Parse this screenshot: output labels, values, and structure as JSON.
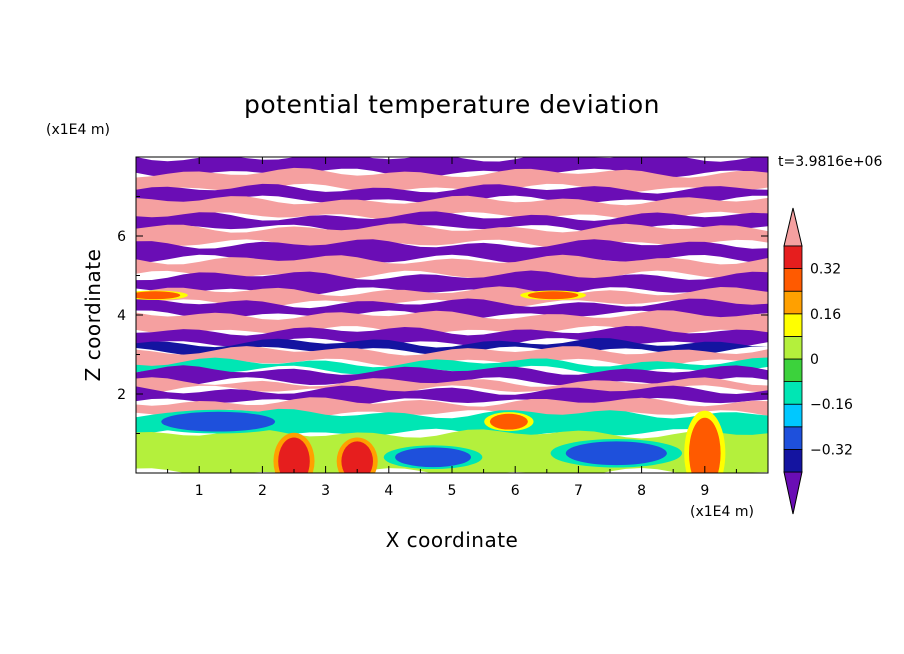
{
  "chart_data": {
    "type": "heatmap",
    "title": "potential temperature deviation",
    "xlabel": "X coordinate",
    "ylabel": "Z coordinate",
    "x_unit": "(x1E4 m)",
    "y_unit": "(x1E4 m)",
    "time_label": "t=3.9816e+06",
    "xlim": [
      0,
      10
    ],
    "ylim": [
      0,
      8
    ],
    "x_ticks": [
      1,
      2,
      3,
      4,
      5,
      6,
      7,
      8,
      9
    ],
    "y_ticks": [
      2,
      4,
      6
    ],
    "colorbar": {
      "ticks": [
        "0.32",
        "0.16",
        "0",
        "−0.16",
        "−0.32"
      ],
      "tick_values": [
        0.32,
        0.16,
        0,
        -0.16,
        -0.32
      ],
      "levels": [
        -0.4,
        -0.32,
        -0.24,
        -0.16,
        -0.08,
        0,
        0.08,
        0.16,
        0.24,
        0.32,
        0.4
      ],
      "colors": [
        "#6a0db5",
        "#1414a0",
        "#1e50dc",
        "#00c8ff",
        "#00e6b4",
        "#3cd23c",
        "#b4f03c",
        "#ffff00",
        "#ffa000",
        "#ff5a00",
        "#e61e1e",
        "#f5a0a0"
      ],
      "extend": "both"
    },
    "bands": [
      {
        "z_bottom": 7.6,
        "z_top": 8.0,
        "value": -0.45
      },
      {
        "z_bottom": 7.2,
        "z_top": 7.6,
        "value": 0.45
      },
      {
        "z_bottom": 6.9,
        "z_top": 7.2,
        "value": -0.45
      },
      {
        "z_bottom": 6.5,
        "z_top": 6.9,
        "value": 0.45
      },
      {
        "z_bottom": 6.2,
        "z_top": 6.5,
        "value": -0.45
      },
      {
        "z_bottom": 5.8,
        "z_top": 6.2,
        "value": 0.45
      },
      {
        "z_bottom": 5.4,
        "z_top": 5.8,
        "value": -0.45
      },
      {
        "z_bottom": 5.0,
        "z_top": 5.4,
        "value": 0.45
      },
      {
        "z_bottom": 4.6,
        "z_top": 5.0,
        "value": -0.45
      },
      {
        "z_bottom": 4.3,
        "z_top": 4.6,
        "value": 0.45
      },
      {
        "z_bottom": 4.0,
        "z_top": 4.3,
        "value": -0.45
      },
      {
        "z_bottom": 3.6,
        "z_top": 4.0,
        "value": 0.45
      },
      {
        "z_bottom": 3.3,
        "z_top": 3.6,
        "value": -0.45
      },
      {
        "z_bottom": 3.1,
        "z_top": 3.3,
        "value": -0.35
      },
      {
        "z_bottom": 2.8,
        "z_top": 3.1,
        "value": 0.45
      },
      {
        "z_bottom": 2.6,
        "z_top": 2.8,
        "value": -0.1
      },
      {
        "z_bottom": 2.3,
        "z_top": 2.6,
        "value": -0.45
      },
      {
        "z_bottom": 2.1,
        "z_top": 2.3,
        "value": 0.45
      },
      {
        "z_bottom": 1.8,
        "z_top": 2.1,
        "value": -0.45
      },
      {
        "z_bottom": 1.5,
        "z_top": 1.8,
        "value": 0.45
      },
      {
        "z_bottom": 1.0,
        "z_top": 1.5,
        "value": -0.1
      },
      {
        "z_bottom": 0.0,
        "z_top": 1.0,
        "value": 0.06
      }
    ],
    "blobs": [
      {
        "x": 2.5,
        "z": 0.3,
        "rx": 0.25,
        "rz": 0.6,
        "value": 0.33
      },
      {
        "x": 3.5,
        "z": 0.3,
        "rx": 0.25,
        "rz": 0.5,
        "value": 0.33
      },
      {
        "x": 9.0,
        "z": 0.5,
        "rx": 0.25,
        "rz": 0.9,
        "value": 0.3
      },
      {
        "x": 5.9,
        "z": 1.3,
        "rx": 0.3,
        "rz": 0.2,
        "value": 0.3
      },
      {
        "x": 4.7,
        "z": 0.4,
        "rx": 0.6,
        "rz": 0.25,
        "value": -0.3
      },
      {
        "x": 7.6,
        "z": 0.5,
        "rx": 0.8,
        "rz": 0.3,
        "value": -0.3
      },
      {
        "x": 1.3,
        "z": 1.3,
        "rx": 0.9,
        "rz": 0.25,
        "value": -0.3
      },
      {
        "x": 0.3,
        "z": 4.5,
        "rx": 0.4,
        "rz": 0.1,
        "value": 0.3
      },
      {
        "x": 6.6,
        "z": 4.5,
        "rx": 0.4,
        "rz": 0.1,
        "value": 0.3
      }
    ]
  }
}
